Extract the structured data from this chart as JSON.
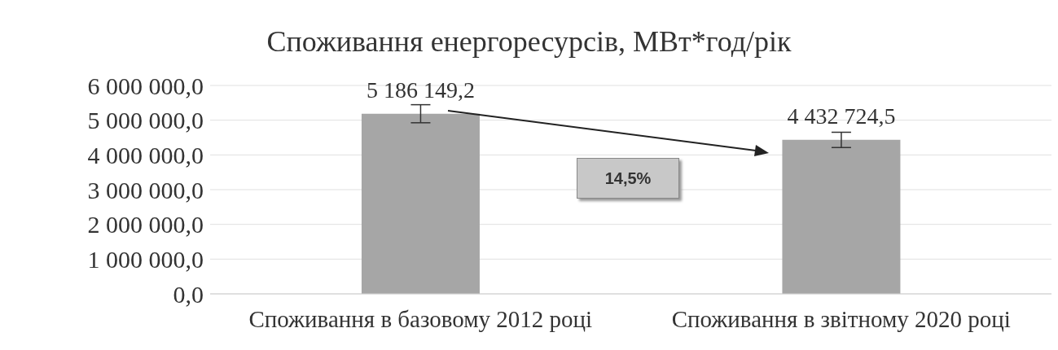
{
  "chart_data": {
    "type": "bar",
    "title": "Споживання енергоресурсів, МВт*год/рік",
    "categories": [
      "Споживання в базовому 2012 році",
      "Споживання в звітному 2020 році"
    ],
    "values": [
      5186149.2,
      4432724.5
    ],
    "color": "#a6a6a6",
    "errors": [
      260000,
      220000
    ],
    "ylim": [
      0,
      6000000
    ],
    "yticks": [
      {
        "value": 0,
        "label": "0,0"
      },
      {
        "value": 1000000,
        "label": "1 000 000,0"
      },
      {
        "value": 2000000,
        "label": "2 000 000,0"
      },
      {
        "value": 3000000,
        "label": "3 000 000,0"
      },
      {
        "value": 4000000,
        "label": "4 000 000,0"
      },
      {
        "value": 5000000,
        "label": "5 000 000,0"
      },
      {
        "value": 6000000,
        "label": "6 000 000,0"
      }
    ],
    "grid": "y",
    "value_labels": [
      "5 186 149,2",
      "4 432 724,5"
    ],
    "annotations": [
      "14,5%"
    ]
  }
}
